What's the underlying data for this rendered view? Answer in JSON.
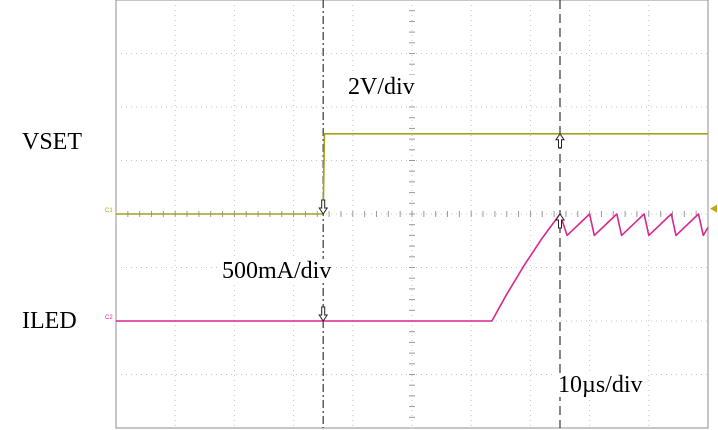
{
  "channels": {
    "c1": {
      "name": "VSET",
      "marker": "C1",
      "scale": "2V/div",
      "color": "#a3a21a"
    },
    "c2": {
      "name": "ILED",
      "marker": "C2",
      "scale": "500mA/div",
      "color": "#d8278d"
    }
  },
  "timebase": {
    "scale": "10µs/div"
  },
  "chart_data": {
    "type": "line",
    "title": "",
    "xlabel": "",
    "ylabel": "",
    "x_units": "div",
    "y_units": "div",
    "xlim": [
      0,
      10
    ],
    "ylim": [
      0,
      8
    ],
    "grid": true,
    "cursors_x": [
      3.5,
      7.5
    ],
    "series": [
      {
        "name": "VSET",
        "color": "#a3a21a",
        "x": [
          0,
          3.5,
          3.52,
          10
        ],
        "y": [
          4,
          4,
          5.5,
          5.5
        ]
      },
      {
        "name": "ILED",
        "color": "#d8278d",
        "x": [
          0,
          6.35,
          6.6,
          6.9,
          7.2,
          7.5,
          7.62,
          8.0,
          8.08,
          8.46,
          8.54,
          8.92,
          9.0,
          9.38,
          9.46,
          9.84,
          9.92,
          10
        ],
        "y": [
          2,
          2,
          2.5,
          3.05,
          3.55,
          4.0,
          3.6,
          4.0,
          3.6,
          4.0,
          3.6,
          4.0,
          3.6,
          4.0,
          3.6,
          4.0,
          3.6,
          3.75
        ]
      }
    ]
  }
}
